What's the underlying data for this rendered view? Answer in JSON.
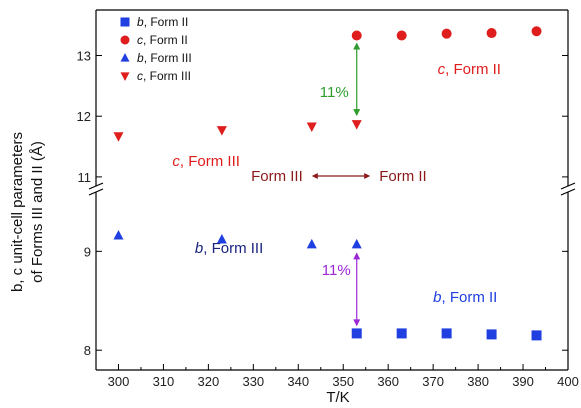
{
  "chart_data": {
    "type": "scatter",
    "xlabel": "T/K",
    "ylabel_line1": "b, c unit-cell parameters",
    "ylabel_line2": "of Forms III and II (Å)",
    "x_ticks": [
      "300",
      "310",
      "320",
      "330",
      "340",
      "350",
      "360",
      "370",
      "380",
      "390",
      "400"
    ],
    "xlim": [
      295,
      400
    ],
    "upper_panel": {
      "ylim": [
        10.85,
        13.75
      ],
      "y_ticks": [
        "11",
        "12",
        "13"
      ]
    },
    "lower_panel": {
      "ylim": [
        7.8,
        9.6
      ],
      "y_ticks": [
        "8",
        "9"
      ]
    },
    "series": [
      {
        "name": "b, Form II",
        "marker": "square",
        "color": "#1f3fe0",
        "panel": "lower",
        "x": [
          353,
          363,
          373,
          383,
          393
        ],
        "y": [
          8.17,
          8.17,
          8.17,
          8.16,
          8.15
        ]
      },
      {
        "name": "c, Form II",
        "marker": "circle",
        "color": "#e01d1d",
        "panel": "upper",
        "x": [
          353,
          363,
          373,
          383,
          393
        ],
        "y": [
          13.33,
          13.33,
          13.36,
          13.37,
          13.4
        ]
      },
      {
        "name": "b, Form III",
        "marker": "triangle-up",
        "color": "#1f3fe0",
        "panel": "lower",
        "x": [
          300,
          323,
          343,
          353
        ],
        "y": [
          9.16,
          9.12,
          9.07,
          9.07
        ]
      },
      {
        "name": "c, Form III",
        "marker": "triangle-down",
        "color": "#e01d1d",
        "panel": "upper",
        "x": [
          300,
          323,
          343,
          353
        ],
        "y": [
          11.67,
          11.77,
          11.83,
          11.87
        ]
      }
    ],
    "legend": [
      {
        "italic": "b",
        "rest": ", Form II",
        "marker": "square",
        "color": "#1f3fe0"
      },
      {
        "italic": "c",
        "rest": ", Form II",
        "marker": "circle",
        "color": "#e01d1d"
      },
      {
        "italic": "b",
        "rest": ", Form III",
        "marker": "triangle-up",
        "color": "#1f3fe0"
      },
      {
        "italic": "c",
        "rest": ", Form III",
        "marker": "triangle-down",
        "color": "#e01d1d"
      }
    ],
    "annotations": {
      "c_form_ii": {
        "italic": "c",
        "rest": ", Form II",
        "color": "#e01d1d"
      },
      "c_form_iii": {
        "italic": "c",
        "rest": ", Form III",
        "color": "#e01d1d"
      },
      "b_form_iii": {
        "italic": "b",
        "rest": ", Form III",
        "color": "#1a237e"
      },
      "b_form_ii": {
        "italic": "b",
        "rest": ", Form II",
        "color": "#1f3fe0"
      },
      "pct_upper": {
        "text": "11%",
        "color": "#2e9d2e"
      },
      "pct_lower": {
        "text": "11%",
        "color": "#9c27d4"
      },
      "form_iii_text": {
        "text": "Form III",
        "color": "#8b1a1a"
      },
      "form_ii_text": {
        "text": "Form II",
        "color": "#8b1a1a"
      }
    }
  }
}
